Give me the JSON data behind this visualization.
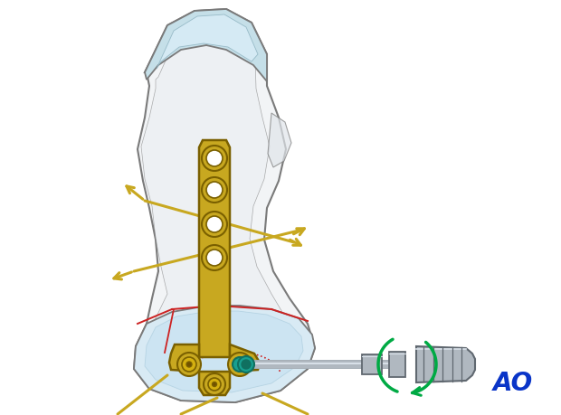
{
  "bg_color": "#ffffff",
  "bone_fill": "#f2f4f6",
  "bone_fill2": "#e8ecf0",
  "bone_outline": "#7a7a7a",
  "cartilage_color": "#c5dfe8",
  "cartilage_outline": "#8ab0be",
  "head_fill": "#d8eaf4",
  "head_outline": "#7a7a7a",
  "plate_color": "#c8a820",
  "plate_dark": "#a08010",
  "plate_outline": "#7a6000",
  "hole_fill": "#ffffff",
  "wire_color": "#c8a820",
  "wire_lw": 2.2,
  "screw_teal": "#18a090",
  "screw_teal_dark": "#107060",
  "driver_fill": "#b0b8c0",
  "driver_mid": "#9098a2",
  "driver_dark": "#606870",
  "driver_light": "#d8e0e8",
  "green_arrow": "#00aa44",
  "red_line": "#cc2222",
  "ao_color": "#0a35c8",
  "figsize": [
    6.2,
    4.59
  ],
  "dpi": 100
}
